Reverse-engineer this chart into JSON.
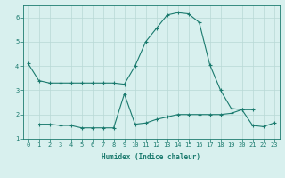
{
  "xlabel": "Humidex (Indice chaleur)",
  "ylabel": "",
  "x": [
    0,
    1,
    2,
    3,
    4,
    5,
    6,
    7,
    8,
    9,
    10,
    11,
    12,
    13,
    14,
    15,
    16,
    17,
    18,
    19,
    20,
    21,
    22,
    23
  ],
  "line1": [
    4.1,
    3.4,
    3.3,
    3.3,
    3.3,
    3.3,
    3.3,
    3.3,
    3.3,
    3.25,
    4.0,
    5.0,
    5.55,
    6.1,
    6.2,
    6.15,
    5.8,
    4.05,
    3.0,
    2.25,
    2.2,
    2.2,
    null,
    null
  ],
  "line2": [
    null,
    1.6,
    1.6,
    1.55,
    1.55,
    1.45,
    1.45,
    1.45,
    1.45,
    2.85,
    1.6,
    1.65,
    1.8,
    1.9,
    2.0,
    2.0,
    2.0,
    2.0,
    2.0,
    2.05,
    2.2,
    1.55,
    1.5,
    1.65
  ],
  "ylim": [
    1.0,
    6.5
  ],
  "xlim": [
    -0.5,
    23.5
  ],
  "line_color": "#1a7a6e",
  "bg_color": "#d8f0ee",
  "grid_color": "#b8d8d5",
  "title_fontsize": 6,
  "label_fontsize": 5.5,
  "tick_fontsize": 5
}
